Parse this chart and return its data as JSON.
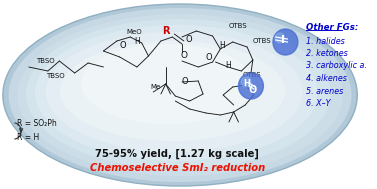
{
  "bottom_text_bold": "75-95% yield, [1.27 kg scale]",
  "bottom_text_italic_red": "Chemoselective SmI₂ reduction",
  "r_eq1": "R = SO₂Ph",
  "r_eq2": "R = H",
  "other_fgs_title": "Other FGs:",
  "other_fgs_items": [
    "1. halides",
    "2. ketones",
    "3. carboxylic a.",
    "4. alkenes",
    "5. arenes",
    "6. X–Y"
  ],
  "blue_sphere_color": "#4a6fd4",
  "blue_sphere_alpha": 0.82,
  "fg_text_color": "#0000cc",
  "red_text_color": "#ee1100",
  "black_text_color": "#111111",
  "red_label_color": "#cc0000",
  "fig_width": 3.77,
  "fig_height": 1.89,
  "dpi": 100
}
